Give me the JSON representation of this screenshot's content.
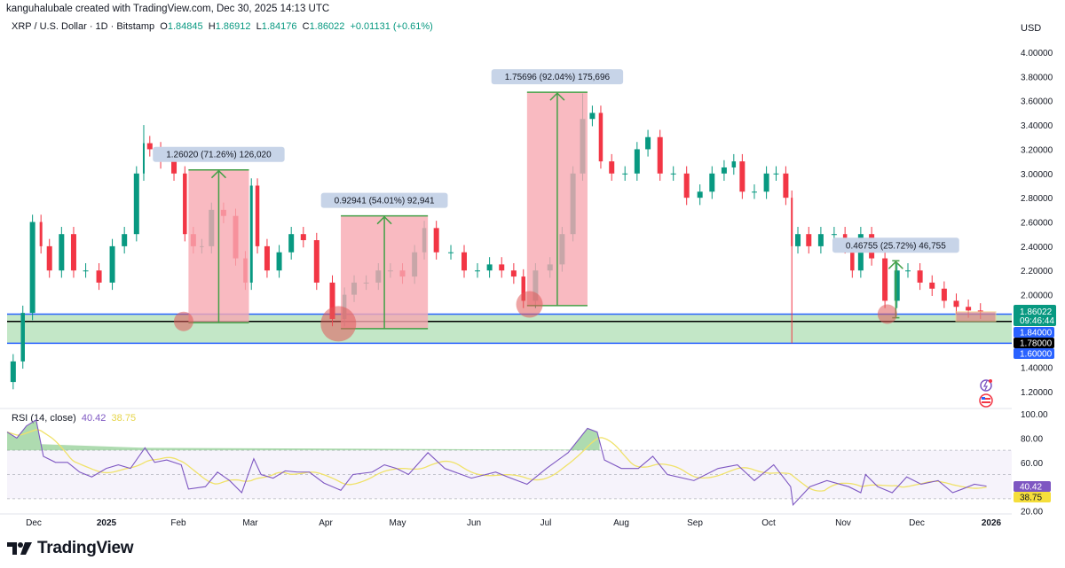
{
  "header": {
    "attribution": "kanguhalubale created with TradingView.com, Dec 30, 2025 14:13 UTC"
  },
  "legend": {
    "symbol": "XRP / U.S. Dollar · 1D · Bitstamp",
    "open_label": "O",
    "open": "1.84845",
    "high_label": "H",
    "high": "1.86912",
    "low_label": "L",
    "low": "1.84176",
    "close_label": "C",
    "close": "1.86022",
    "change": "+0.01131 (+0.61%)"
  },
  "rsi_legend": {
    "name": "RSI (14, close)",
    "value": "40.42",
    "ma_value": "38.75"
  },
  "axis": {
    "currency": "USD"
  },
  "price_tags": {
    "last": "1.86022",
    "countdown": "09:46:44",
    "level_1": "1.84000",
    "level_2": "1.78000",
    "level_3": "1.60000"
  },
  "rsi_tags": {
    "rsi": "40.42",
    "ma": "38.75"
  },
  "logo": {
    "text": "TradingView"
  },
  "colors": {
    "up": "#089981",
    "down": "#f23645",
    "zone": "#b9e3bd",
    "box": "#f7a9b2",
    "level_line": "#2962ff",
    "rsi": "#7e57c2",
    "rsi_ma": "#f0e26a"
  },
  "chart_data": [
    {
      "type": "candlestick",
      "title": "XRP / U.S. Dollar · 1D · Bitstamp",
      "ylabel": "USD",
      "ylim": [
        1.05,
        4.1
      ],
      "y_ticks": [
        "4.00000",
        "3.80000",
        "3.60000",
        "3.40000",
        "3.20000",
        "3.00000",
        "2.80000",
        "2.60000",
        "2.40000",
        "2.20000",
        "2.00000",
        "1.40000",
        "1.20000"
      ],
      "x_ticks": [
        "Dec",
        "2025",
        "Feb",
        "Mar",
        "Apr",
        "May",
        "Jun",
        "Jul",
        "Aug",
        "Sep",
        "Oct",
        "Nov",
        "Dec",
        "2026"
      ],
      "grid": false,
      "closes": [
        [
          "2024-11-20",
          1.28
        ],
        [
          "2024-11-25",
          1.45
        ],
        [
          "2024-11-28",
          1.85
        ],
        [
          "2024-12-03",
          2.6
        ],
        [
          "2024-12-05",
          2.4
        ],
        [
          "2024-12-10",
          2.2
        ],
        [
          "2024-12-15",
          2.5
        ],
        [
          "2024-12-20",
          2.2
        ],
        [
          "2024-12-25",
          2.2
        ],
        [
          "2024-12-31",
          2.1
        ],
        [
          "2025-01-05",
          2.4
        ],
        [
          "2025-01-10",
          2.5
        ],
        [
          "2025-01-15",
          3.0
        ],
        [
          "2025-01-16",
          3.25
        ],
        [
          "2025-01-20",
          3.2
        ],
        [
          "2025-01-25",
          3.1
        ],
        [
          "2025-01-31",
          3.0
        ],
        [
          "2025-02-03",
          2.5
        ],
        [
          "2025-02-07",
          2.4
        ],
        [
          "2025-02-10",
          2.4
        ],
        [
          "2025-02-15",
          2.7
        ],
        [
          "2025-02-20",
          2.65
        ],
        [
          "2025-02-25",
          2.3
        ],
        [
          "2025-02-28",
          2.1
        ],
        [
          "2025-03-02",
          2.9
        ],
        [
          "2025-03-05",
          2.4
        ],
        [
          "2025-03-10",
          2.2
        ],
        [
          "2025-03-15",
          2.35
        ],
        [
          "2025-03-20",
          2.5
        ],
        [
          "2025-03-25",
          2.45
        ],
        [
          "2025-03-31",
          2.1
        ],
        [
          "2025-04-07",
          1.8
        ],
        [
          "2025-04-10",
          2.0
        ],
        [
          "2025-04-15",
          2.1
        ],
        [
          "2025-04-20",
          2.1
        ],
        [
          "2025-04-25",
          2.2
        ],
        [
          "2025-04-30",
          2.2
        ],
        [
          "2025-05-05",
          2.15
        ],
        [
          "2025-05-10",
          2.35
        ],
        [
          "2025-05-13",
          2.55
        ],
        [
          "2025-05-20",
          2.35
        ],
        [
          "2025-05-25",
          2.35
        ],
        [
          "2025-05-31",
          2.2
        ],
        [
          "2025-06-05",
          2.2
        ],
        [
          "2025-06-10",
          2.25
        ],
        [
          "2025-06-15",
          2.2
        ],
        [
          "2025-06-20",
          2.15
        ],
        [
          "2025-06-23",
          1.95
        ],
        [
          "2025-06-30",
          2.2
        ],
        [
          "2025-07-05",
          2.25
        ],
        [
          "2025-07-10",
          2.5
        ],
        [
          "2025-07-14",
          3.0
        ],
        [
          "2025-07-18",
          3.45
        ],
        [
          "2025-07-22",
          3.5
        ],
        [
          "2025-07-25",
          3.1
        ],
        [
          "2025-07-31",
          3.0
        ],
        [
          "2025-08-05",
          3.0
        ],
        [
          "2025-08-10",
          3.2
        ],
        [
          "2025-08-14",
          3.3
        ],
        [
          "2025-08-20",
          3.0
        ],
        [
          "2025-08-25",
          3.0
        ],
        [
          "2025-08-31",
          2.8
        ],
        [
          "2025-09-05",
          2.85
        ],
        [
          "2025-09-10",
          3.0
        ],
        [
          "2025-09-15",
          3.05
        ],
        [
          "2025-09-18",
          3.1
        ],
        [
          "2025-09-22",
          2.85
        ],
        [
          "2025-09-28",
          2.85
        ],
        [
          "2025-10-02",
          3.0
        ],
        [
          "2025-10-06",
          3.0
        ],
        [
          "2025-10-10",
          2.8
        ],
        [
          "2025-10-11",
          2.4
        ],
        [
          "2025-10-15",
          2.5
        ],
        [
          "2025-10-20",
          2.4
        ],
        [
          "2025-10-25",
          2.5
        ],
        [
          "2025-10-31",
          2.5
        ],
        [
          "2025-11-03",
          2.4
        ],
        [
          "2025-11-06",
          2.2
        ],
        [
          "2025-11-10",
          2.5
        ],
        [
          "2025-11-15",
          2.3
        ],
        [
          "2025-11-21",
          1.95
        ],
        [
          "2025-11-25",
          2.2
        ],
        [
          "2025-11-30",
          2.2
        ],
        [
          "2025-12-05",
          2.1
        ],
        [
          "2025-12-10",
          2.05
        ],
        [
          "2025-12-15",
          1.95
        ],
        [
          "2025-12-20",
          1.9
        ],
        [
          "2025-12-25",
          1.87
        ],
        [
          "2025-12-30",
          1.86022
        ]
      ],
      "notable_extremes": {
        "2025-10-10 low": 1.6,
        "2025-07-18 high": 3.66,
        "2025-01-16 high": 3.4
      },
      "horizontal_levels": [
        1.84,
        1.78,
        1.6
      ],
      "support_zone": [
        1.6,
        1.84
      ],
      "measurements": [
        {
          "from": [
            "2025-02-03",
            1.77
          ],
          "to": [
            "2025-02-28",
            3.03
          ],
          "label": "1.26020 (71.26%) 126,020"
        },
        {
          "from": [
            "2025-04-07",
            1.72
          ],
          "to": [
            "2025-05-13",
            2.65
          ],
          "label": "0.92941 (54.01%) 92,941"
        },
        {
          "from": [
            "2025-06-23",
            1.91
          ],
          "to": [
            "2025-07-18",
            3.67
          ],
          "label": "1.75696 (92.04%) 175,696"
        },
        {
          "from": [
            "2025-11-21",
            1.81
          ],
          "to": [
            "2025-11-24",
            2.28
          ],
          "label": "0.46755 (25.72%) 46,755"
        }
      ],
      "highlight_circles": [
        [
          "2025-02-01",
          1.78
        ],
        [
          "2025-04-06",
          1.76
        ],
        [
          "2025-06-24",
          1.92
        ],
        [
          "2025-11-19",
          1.84
        ]
      ]
    },
    {
      "type": "line",
      "title": "RSI (14, close)",
      "ylim": [
        20,
        100
      ],
      "y_ticks": [
        "100.00",
        "80.00",
        "60.00",
        "20.00"
      ],
      "bands": [
        30,
        70
      ],
      "series": [
        {
          "name": "RSI (14, close)",
          "values": [
            [
              "2024-11-20",
              85
            ],
            [
              "2024-11-24",
              80
            ],
            [
              "2024-11-28",
              90
            ],
            [
              "2024-12-02",
              95
            ],
            [
              "2024-12-05",
              65
            ],
            [
              "2024-12-10",
              60
            ],
            [
              "2024-12-15",
              60
            ],
            [
              "2024-12-20",
              52
            ],
            [
              "2024-12-25",
              48
            ],
            [
              "2024-12-31",
              55
            ],
            [
              "2025-01-05",
              58
            ],
            [
              "2025-01-10",
              55
            ],
            [
              "2025-01-16",
              72
            ],
            [
              "2025-01-20",
              60
            ],
            [
              "2025-01-25",
              62
            ],
            [
              "2025-01-31",
              58
            ],
            [
              "2025-02-03",
              38
            ],
            [
              "2025-02-10",
              40
            ],
            [
              "2025-02-15",
              52
            ],
            [
              "2025-02-20",
              45
            ],
            [
              "2025-02-25",
              35
            ],
            [
              "2025-03-02",
              63
            ],
            [
              "2025-03-05",
              50
            ],
            [
              "2025-03-10",
              47
            ],
            [
              "2025-03-15",
              53
            ],
            [
              "2025-03-20",
              52
            ],
            [
              "2025-03-25",
              52
            ],
            [
              "2025-03-31",
              43
            ],
            [
              "2025-04-07",
              37
            ],
            [
              "2025-04-12",
              50
            ],
            [
              "2025-04-20",
              52
            ],
            [
              "2025-04-25",
              58
            ],
            [
              "2025-04-30",
              55
            ],
            [
              "2025-05-05",
              50
            ],
            [
              "2025-05-13",
              68
            ],
            [
              "2025-05-20",
              55
            ],
            [
              "2025-05-31",
              47
            ],
            [
              "2025-06-10",
              52
            ],
            [
              "2025-06-15",
              48
            ],
            [
              "2025-06-23",
              42
            ],
            [
              "2025-07-01",
              55
            ],
            [
              "2025-07-10",
              68
            ],
            [
              "2025-07-18",
              88
            ],
            [
              "2025-07-22",
              85
            ],
            [
              "2025-07-25",
              62
            ],
            [
              "2025-08-01",
              55
            ],
            [
              "2025-08-08",
              55
            ],
            [
              "2025-08-14",
              65
            ],
            [
              "2025-08-20",
              50
            ],
            [
              "2025-08-31",
              45
            ],
            [
              "2025-09-10",
              55
            ],
            [
              "2025-09-18",
              58
            ],
            [
              "2025-09-25",
              45
            ],
            [
              "2025-10-03",
              58
            ],
            [
              "2025-10-10",
              40
            ],
            [
              "2025-10-11",
              25
            ],
            [
              "2025-10-18",
              40
            ],
            [
              "2025-10-25",
              45
            ],
            [
              "2025-11-03",
              40
            ],
            [
              "2025-11-08",
              35
            ],
            [
              "2025-11-10",
              50
            ],
            [
              "2025-11-15",
              40
            ],
            [
              "2025-11-21",
              35
            ],
            [
              "2025-11-27",
              48
            ],
            [
              "2025-12-03",
              42
            ],
            [
              "2025-12-10",
              45
            ],
            [
              "2025-12-16",
              35
            ],
            [
              "2025-12-20",
              38
            ],
            [
              "2025-12-25",
              42
            ],
            [
              "2025-12-30",
              40.42
            ]
          ]
        }
      ]
    }
  ]
}
